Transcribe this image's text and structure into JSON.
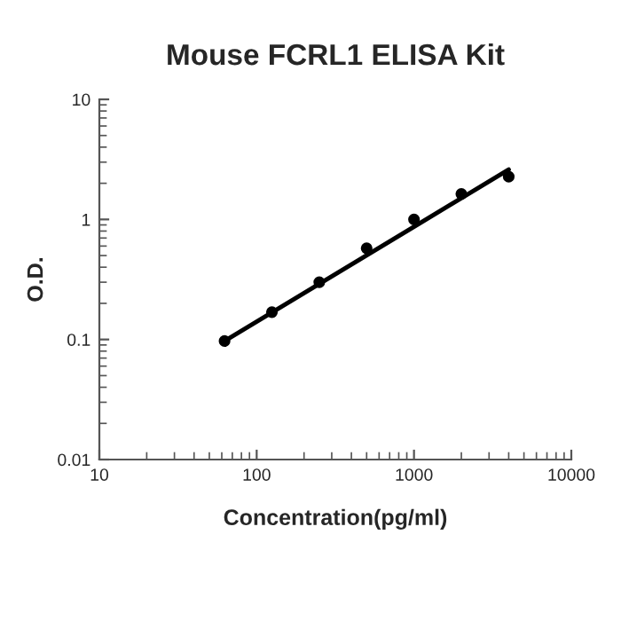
{
  "chart_data": {
    "type": "scatter",
    "title": "Mouse FCRL1 ELISA Kit",
    "xlabel": "Concentration(pg/ml)",
    "ylabel": "O.D.",
    "log": "xy",
    "xlim": [
      10,
      10000
    ],
    "ylim": [
      0.01,
      10
    ],
    "xticks": [
      10,
      100,
      1000,
      10000
    ],
    "yticks": [
      0.01,
      0.1,
      1,
      10
    ],
    "grid": false,
    "legend": false,
    "series": [
      {
        "color": "#000000",
        "marker": "circle",
        "x": [
          62.5,
          125,
          250,
          500,
          1000,
          2000,
          4000
        ],
        "values": [
          0.097,
          0.169,
          0.3,
          0.575,
          1.0,
          1.63,
          2.27
        ]
      },
      {
        "type": "line",
        "color": "#000000",
        "marker": "none",
        "line_style": "solid",
        "x": [
          62.5,
          4000
        ],
        "values": [
          0.097,
          2.6
        ]
      }
    ]
  }
}
